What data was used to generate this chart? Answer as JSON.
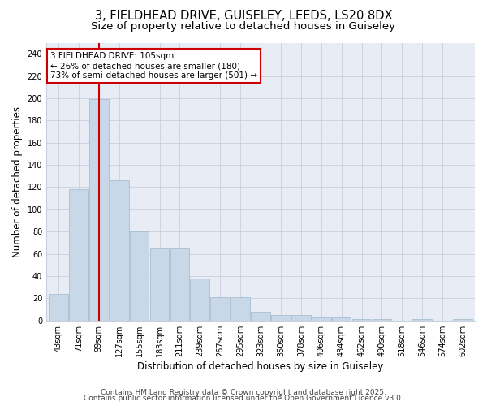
{
  "title_line1": "3, FIELDHEAD DRIVE, GUISELEY, LEEDS, LS20 8DX",
  "title_line2": "Size of property relative to detached houses in Guiseley",
  "xlabel": "Distribution of detached houses by size in Guiseley",
  "ylabel": "Number of detached properties",
  "categories": [
    "43sqm",
    "71sqm",
    "99sqm",
    "127sqm",
    "155sqm",
    "183sqm",
    "211sqm",
    "239sqm",
    "267sqm",
    "295sqm",
    "323sqm",
    "350sqm",
    "378sqm",
    "406sqm",
    "434sqm",
    "462sqm",
    "490sqm",
    "518sqm",
    "546sqm",
    "574sqm",
    "602sqm"
  ],
  "bar_values": [
    24,
    118,
    199,
    126,
    80,
    65,
    65,
    38,
    21,
    21,
    8,
    5,
    5,
    3,
    3,
    1,
    1,
    0,
    1,
    0,
    1
  ],
  "bar_color": "#c8d8e8",
  "bar_edgecolor": "#a0b8cc",
  "grid_color": "#c8d0dc",
  "background_color": "#e8ecf4",
  "fig_background_color": "#ffffff",
  "vline_x_index": 2,
  "vline_color": "#cc0000",
  "annotation_text": "3 FIELDHEAD DRIVE: 105sqm\n← 26% of detached houses are smaller (180)\n73% of semi-detached houses are larger (501) →",
  "annotation_box_facecolor": "#ffffff",
  "annotation_box_edgecolor": "#cc0000",
  "ylim": [
    0,
    250
  ],
  "yticks": [
    0,
    20,
    40,
    60,
    80,
    100,
    120,
    140,
    160,
    180,
    200,
    220,
    240
  ],
  "footer_line1": "Contains HM Land Registry data © Crown copyright and database right 2025.",
  "footer_line2": "Contains public sector information licensed under the Open Government Licence v3.0.",
  "title_fontsize": 10.5,
  "subtitle_fontsize": 9.5,
  "tick_fontsize": 7,
  "label_fontsize": 8.5,
  "annotation_fontsize": 7.5,
  "footer_fontsize": 6.5
}
